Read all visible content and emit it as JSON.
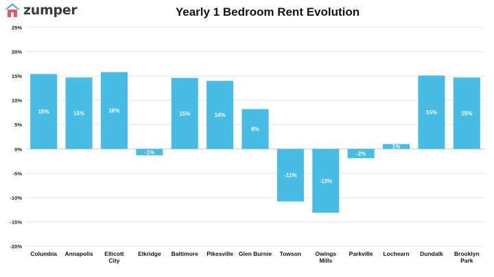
{
  "brand": {
    "name": "zumper",
    "icon": "house-icon",
    "colors": {
      "roof": "#4aa8e0",
      "body": "#e8586a"
    }
  },
  "chart_data": {
    "type": "bar",
    "title": "Yearly 1 Bedroom Rent Evolution",
    "xlabel": "",
    "ylabel": "",
    "ylim": [
      -0.2,
      0.25
    ],
    "ytick_format": "percent",
    "grid": true,
    "bar_color": "#47bde6",
    "categories": [
      "Columbia",
      "Annapolis",
      "Ellicott City",
      "Elkridge",
      "Baltimore",
      "Pikesville",
      "Glen Burnie",
      "Towson",
      "Owings Mills",
      "Parkville",
      "Lochearn",
      "Dundalk",
      "Brooklyn Park"
    ],
    "values": [
      0.154,
      0.147,
      0.158,
      -0.013,
      0.146,
      0.14,
      0.082,
      -0.108,
      -0.131,
      -0.019,
      0.01,
      0.151,
      0.147
    ],
    "data_labels": [
      "15%",
      "15%",
      "16%",
      "-1%",
      "15%",
      "14%",
      "8%",
      "-11%",
      "-13%",
      "-2%",
      "1%",
      "15%",
      "15%"
    ],
    "yticks": [
      {
        "value": 0.25,
        "label": "25%"
      },
      {
        "value": 0.2,
        "label": "20%"
      },
      {
        "value": 0.15,
        "label": "15%"
      },
      {
        "value": 0.1,
        "label": "10%"
      },
      {
        "value": 0.05,
        "label": "5%"
      },
      {
        "value": 0.0,
        "label": "0%"
      },
      {
        "value": -0.05,
        "label": "-5%"
      },
      {
        "value": -0.1,
        "label": "-10%"
      },
      {
        "value": -0.15,
        "label": "-15%"
      },
      {
        "value": -0.2,
        "label": "-20%"
      }
    ]
  }
}
